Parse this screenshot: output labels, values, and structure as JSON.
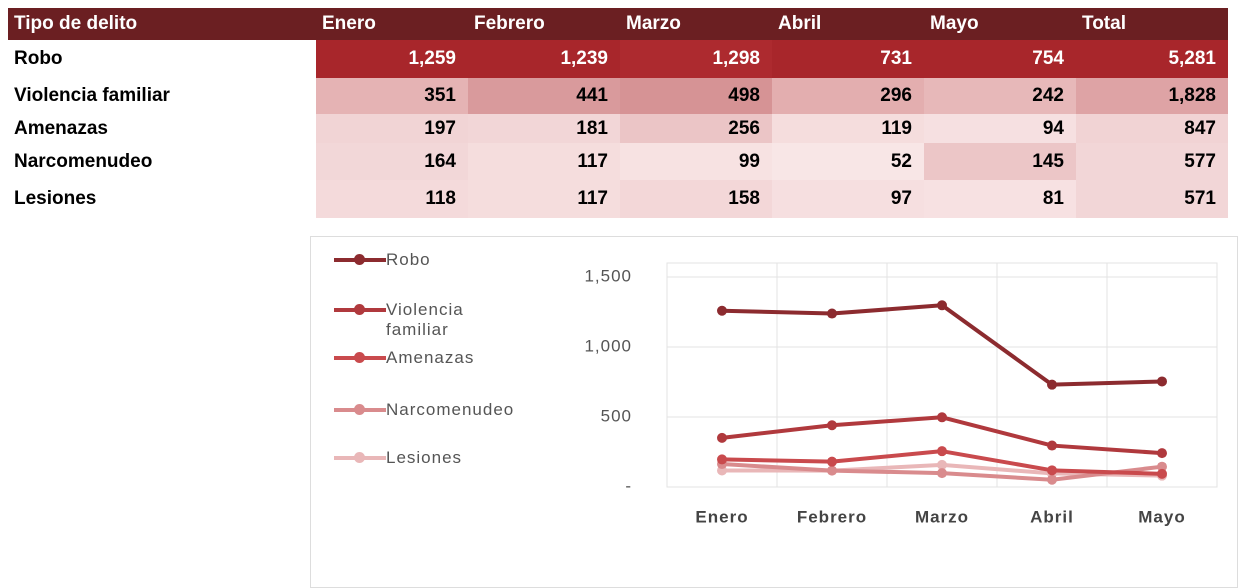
{
  "table": {
    "header": [
      "Tipo de delito",
      "Enero",
      "Febrero",
      "Marzo",
      "Abril",
      "Mayo",
      "Total"
    ],
    "rows": [
      [
        "Robo",
        "1,259",
        "1,239",
        "1,298",
        "731",
        "754",
        "5,281"
      ],
      [
        "Violencia familiar",
        "351",
        "441",
        "498",
        "296",
        "242",
        "1,828"
      ],
      [
        "Amenazas",
        "197",
        "181",
        "256",
        "119",
        "94",
        "847"
      ],
      [
        "Narcomenudeo",
        "164",
        "117",
        "99",
        "52",
        "145",
        "577"
      ],
      [
        "Lesiones",
        "118",
        "117",
        "158",
        "97",
        "81",
        "571"
      ]
    ]
  },
  "chart_data": {
    "type": "line",
    "categories": [
      "Enero",
      "Febrero",
      "Marzo",
      "Abril",
      "Mayo"
    ],
    "series": [
      {
        "name": "Robo",
        "color": "#8c2b2f",
        "values": [
          1259,
          1239,
          1298,
          731,
          754
        ]
      },
      {
        "name": "Violencia familiar",
        "color": "#b0393d",
        "values": [
          351,
          441,
          498,
          296,
          242
        ]
      },
      {
        "name": "Amenazas",
        "color": "#c94a4d",
        "values": [
          197,
          181,
          256,
          119,
          94
        ]
      },
      {
        "name": "Narcomenudeo",
        "color": "#d98b8d",
        "values": [
          164,
          117,
          99,
          52,
          145
        ]
      },
      {
        "name": "Lesiones",
        "color": "#e9b7b8",
        "values": [
          118,
          117,
          158,
          97,
          81
        ]
      }
    ],
    "ylim": [
      0,
      1600
    ],
    "yticks": [
      {
        "value": 0,
        "label": "-"
      },
      500,
      {
        "value": 1000,
        "label": "1,000"
      },
      {
        "value": 1500,
        "label": "1,500"
      }
    ],
    "grid": true
  }
}
